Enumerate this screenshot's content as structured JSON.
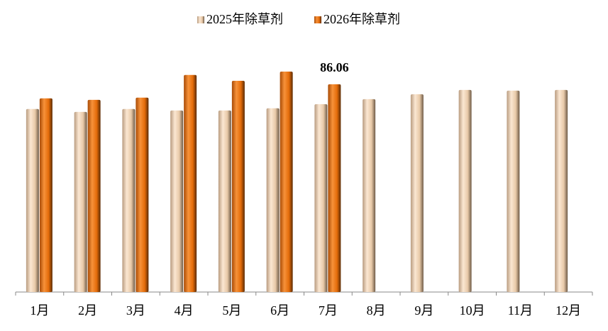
{
  "chart_data": {
    "type": "bar",
    "categories": [
      "1月",
      "2月",
      "3月",
      "4月",
      "5月",
      "6月",
      "7月",
      "8月",
      "9月",
      "10月",
      "11月",
      "12月"
    ],
    "series": [
      {
        "name": "2025年除草剂",
        "color": "#e8c9a8",
        "values": [
          75.8,
          74.6,
          75.8,
          75.2,
          75.2,
          76.1,
          77.8,
          79.9,
          81.9,
          83.7,
          83.4,
          83.7
        ]
      },
      {
        "name": "2026年除草剂",
        "color": "#e46c0a",
        "values": [
          80.2,
          79.6,
          80.5,
          89.9,
          87.5,
          91.3,
          86.06,
          null,
          null,
          null,
          null,
          null
        ],
        "data_labels": [
          6
        ]
      }
    ]
  }
}
